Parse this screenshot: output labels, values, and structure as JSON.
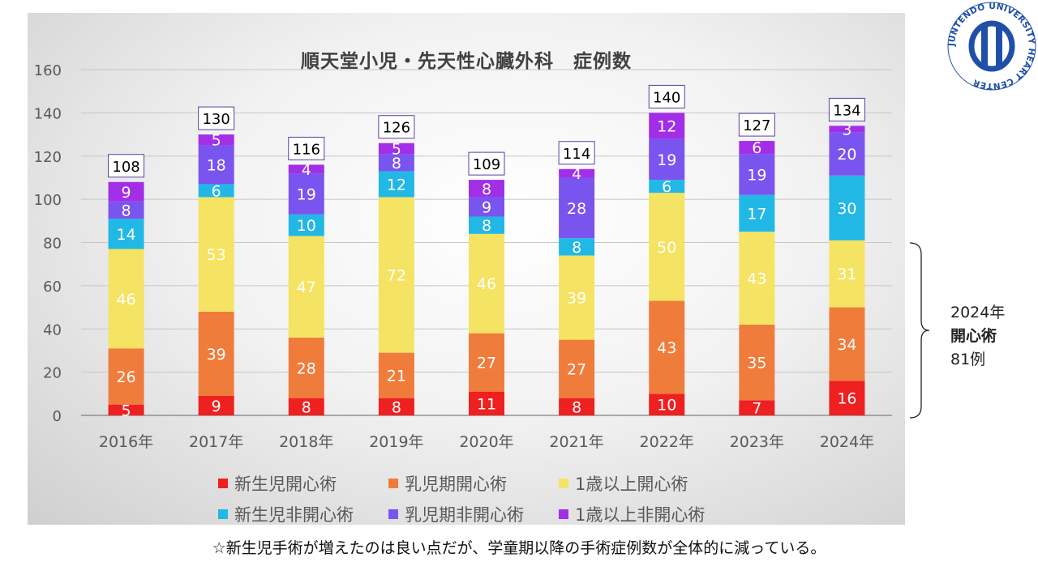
{
  "chart_data": {
    "type": "bar",
    "stacked": true,
    "title": "順天堂小児・先天性心臓外科　症例数",
    "categories": [
      "2016年",
      "2017年",
      "2018年",
      "2019年",
      "2020年",
      "2021年",
      "2022年",
      "2023年",
      "2024年"
    ],
    "series": [
      {
        "name": "新生児開心術",
        "color": "#ee2020",
        "values": [
          5,
          9,
          8,
          8,
          11,
          8,
          10,
          7,
          16
        ]
      },
      {
        "name": "乳児期開心術",
        "color": "#f07c3c",
        "values": [
          26,
          39,
          28,
          21,
          27,
          27,
          43,
          35,
          34
        ]
      },
      {
        "name": "1歳以上開心術",
        "color": "#f5e363",
        "values": [
          46,
          53,
          47,
          72,
          46,
          39,
          50,
          43,
          31
        ]
      },
      {
        "name": "新生児非開心術",
        "color": "#22b8e6",
        "values": [
          14,
          6,
          10,
          12,
          8,
          8,
          6,
          17,
          30
        ]
      },
      {
        "name": "乳児期非開心術",
        "color": "#7a54ee",
        "values": [
          8,
          18,
          19,
          8,
          9,
          28,
          19,
          19,
          20
        ]
      },
      {
        "name": "1歳以上非開心術",
        "color": "#a22ee8",
        "values": [
          9,
          5,
          4,
          5,
          8,
          4,
          12,
          6,
          3
        ]
      }
    ],
    "totals": [
      108,
      130,
      116,
      126,
      109,
      114,
      140,
      127,
      134
    ],
    "ylim": [
      0,
      160
    ],
    "yticks": [
      0,
      20,
      40,
      60,
      80,
      100,
      120,
      140,
      160
    ],
    "grid": true,
    "legend_position": "bottom"
  },
  "logo": {
    "text": "JUNTENDO UNIVERSITY HEART CENTER",
    "color": "#1f4fa8"
  },
  "annotation": {
    "line1": "2024年",
    "line2": "開心術",
    "line3": "81例"
  },
  "footer": "☆新生児手術が増えたのは良い点だが、学童期以降の手術症例数が全体的に減っている。"
}
